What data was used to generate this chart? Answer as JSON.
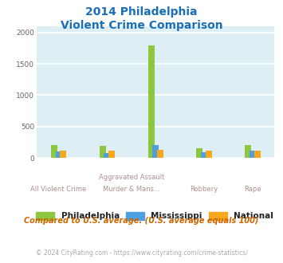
{
  "title_line1": "2014 Philadelphia",
  "title_line2": "Violent Crime Comparison",
  "philadelphia": [
    200,
    185,
    1800,
    155,
    205
  ],
  "mississippi": [
    100,
    75,
    210,
    90,
    110
  ],
  "national": [
    120,
    120,
    125,
    115,
    120
  ],
  "philly_color": "#8dc63f",
  "miss_color": "#4f9fde",
  "natl_color": "#f5a81c",
  "bg_color": "#deeef5",
  "title_color": "#1a6eb5",
  "xlabel_color": "#b09090",
  "footer_text": "© 2024 CityRating.com - https://www.cityrating.com/crime-statistics/",
  "note_text": "Compared to U.S. average. (U.S. average equals 100)",
  "note_color": "#cc6600",
  "footer_color": "#aaaaaa",
  "ylim": [
    0,
    2100
  ],
  "yticks": [
    0,
    500,
    1000,
    1500,
    2000
  ],
  "legend_labels": [
    "Philadelphia",
    "Mississippi",
    "National"
  ]
}
